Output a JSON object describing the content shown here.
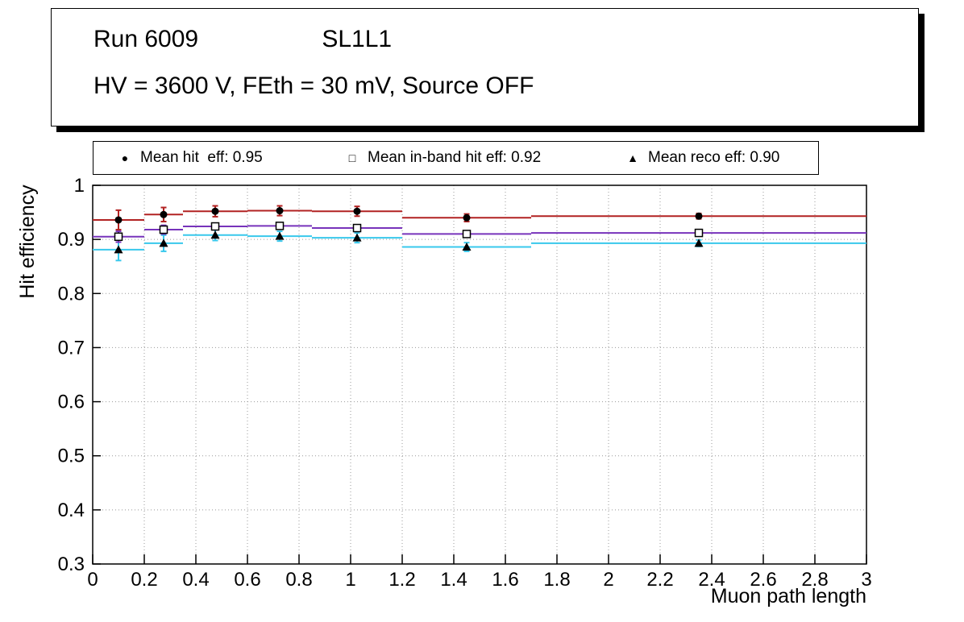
{
  "title_box": {
    "line1_left": "Run 6009",
    "line1_right": "SL1L1",
    "line2": "HV = 3600 V, FEth = 30 mV, Source OFF"
  },
  "legend": {
    "entries": [
      {
        "marker": "circle-filled",
        "glyph": "●",
        "label": "Mean hit  eff: 0.95"
      },
      {
        "marker": "square-open",
        "glyph": "□",
        "label": "Mean in-band hit eff: 0.92"
      },
      {
        "marker": "triangle-filled",
        "glyph": "▲",
        "label": "Mean reco eff: 0.90"
      }
    ]
  },
  "chart_data": {
    "type": "scatter",
    "title": "Run 6009 SL1L1 — HV = 3600 V, FEth = 30 mV, Source OFF",
    "xlabel": "Muon path length",
    "ylabel": "Hit efficiency",
    "xlim": [
      0,
      3
    ],
    "ylim": [
      0.3,
      1.0
    ],
    "x_ticks": [
      0,
      0.2,
      0.4,
      0.6,
      0.8,
      1,
      1.2,
      1.4,
      1.6,
      1.8,
      2,
      2.2,
      2.4,
      2.6,
      2.8,
      3
    ],
    "y_ticks": [
      0.3,
      0.4,
      0.5,
      0.6,
      0.7,
      0.8,
      0.9,
      1
    ],
    "grid": true,
    "legend_position": "top",
    "series": [
      {
        "id": "mean-hit-eff",
        "name": "Mean hit eff",
        "mean": 0.95,
        "marker": "circle-filled",
        "color": "#b22222",
        "marker_color": "#000000",
        "points": [
          {
            "x": 0.1,
            "xlow": 0.0,
            "xhigh": 0.2,
            "y": 0.936,
            "yerr": 0.018
          },
          {
            "x": 0.275,
            "xlow": 0.2,
            "xhigh": 0.35,
            "y": 0.946,
            "yerr": 0.013
          },
          {
            "x": 0.475,
            "xlow": 0.35,
            "xhigh": 0.6,
            "y": 0.952,
            "yerr": 0.01
          },
          {
            "x": 0.725,
            "xlow": 0.6,
            "xhigh": 0.85,
            "y": 0.953,
            "yerr": 0.009
          },
          {
            "x": 1.025,
            "xlow": 0.85,
            "xhigh": 1.2,
            "y": 0.952,
            "yerr": 0.009
          },
          {
            "x": 1.45,
            "xlow": 1.2,
            "xhigh": 1.7,
            "y": 0.94,
            "yerr": 0.007
          },
          {
            "x": 2.35,
            "xlow": 1.7,
            "xhigh": 3.0,
            "y": 0.943,
            "yerr": 0.005
          }
        ]
      },
      {
        "id": "mean-in-band-hit-eff",
        "name": "Mean in-band hit eff",
        "mean": 0.92,
        "marker": "square-open",
        "color": "#7733bb",
        "marker_color": "#000000",
        "points": [
          {
            "x": 0.1,
            "xlow": 0.0,
            "xhigh": 0.2,
            "y": 0.905,
            "yerr": 0.01
          },
          {
            "x": 0.275,
            "xlow": 0.2,
            "xhigh": 0.35,
            "y": 0.918,
            "yerr": 0.008
          },
          {
            "x": 0.475,
            "xlow": 0.35,
            "xhigh": 0.6,
            "y": 0.924,
            "yerr": 0.006
          },
          {
            "x": 0.725,
            "xlow": 0.6,
            "xhigh": 0.85,
            "y": 0.925,
            "yerr": 0.006
          },
          {
            "x": 1.025,
            "xlow": 0.85,
            "xhigh": 1.2,
            "y": 0.921,
            "yerr": 0.006
          },
          {
            "x": 1.45,
            "xlow": 1.2,
            "xhigh": 1.7,
            "y": 0.91,
            "yerr": 0.005
          },
          {
            "x": 2.35,
            "xlow": 1.7,
            "xhigh": 3.0,
            "y": 0.912,
            "yerr": 0.004
          }
        ]
      },
      {
        "id": "mean-reco-eff",
        "name": "Mean reco eff",
        "mean": 0.9,
        "marker": "triangle-filled",
        "color": "#38c8ec",
        "marker_color": "#000000",
        "points": [
          {
            "x": 0.1,
            "xlow": 0.0,
            "xhigh": 0.2,
            "y": 0.881,
            "yerr": 0.02
          },
          {
            "x": 0.275,
            "xlow": 0.2,
            "xhigh": 0.35,
            "y": 0.893,
            "yerr": 0.015
          },
          {
            "x": 0.475,
            "xlow": 0.35,
            "xhigh": 0.6,
            "y": 0.908,
            "yerr": 0.01
          },
          {
            "x": 0.725,
            "xlow": 0.6,
            "xhigh": 0.85,
            "y": 0.906,
            "yerr": 0.009
          },
          {
            "x": 1.025,
            "xlow": 0.85,
            "xhigh": 1.2,
            "y": 0.903,
            "yerr": 0.009
          },
          {
            "x": 1.45,
            "xlow": 1.2,
            "xhigh": 1.7,
            "y": 0.886,
            "yerr": 0.008
          },
          {
            "x": 2.35,
            "xlow": 1.7,
            "xhigh": 3.0,
            "y": 0.893,
            "yerr": 0.006
          }
        ]
      }
    ]
  }
}
